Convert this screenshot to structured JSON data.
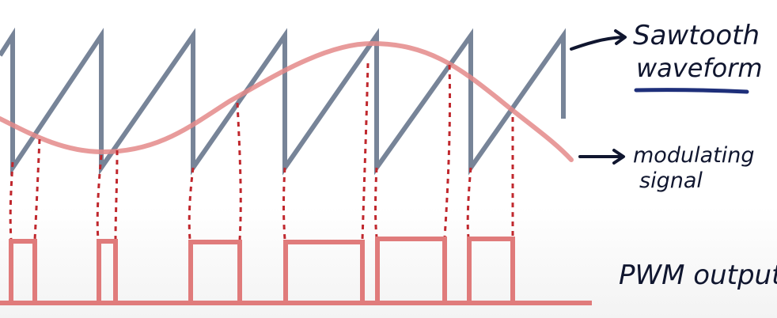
{
  "labels": {
    "sawtooth_line1": "Sawtooth",
    "sawtooth_line2": "waveform",
    "modulating_line1": "modulating",
    "modulating_line2": "signal",
    "pwm": "PWM output"
  },
  "colors": {
    "sawtooth": "#5f6f86",
    "modulating": "#e48a8a",
    "guides": "#c0272d",
    "pwm": "#e07b7b",
    "ink": "#10162f",
    "underline": "#1e2f7a"
  }
}
